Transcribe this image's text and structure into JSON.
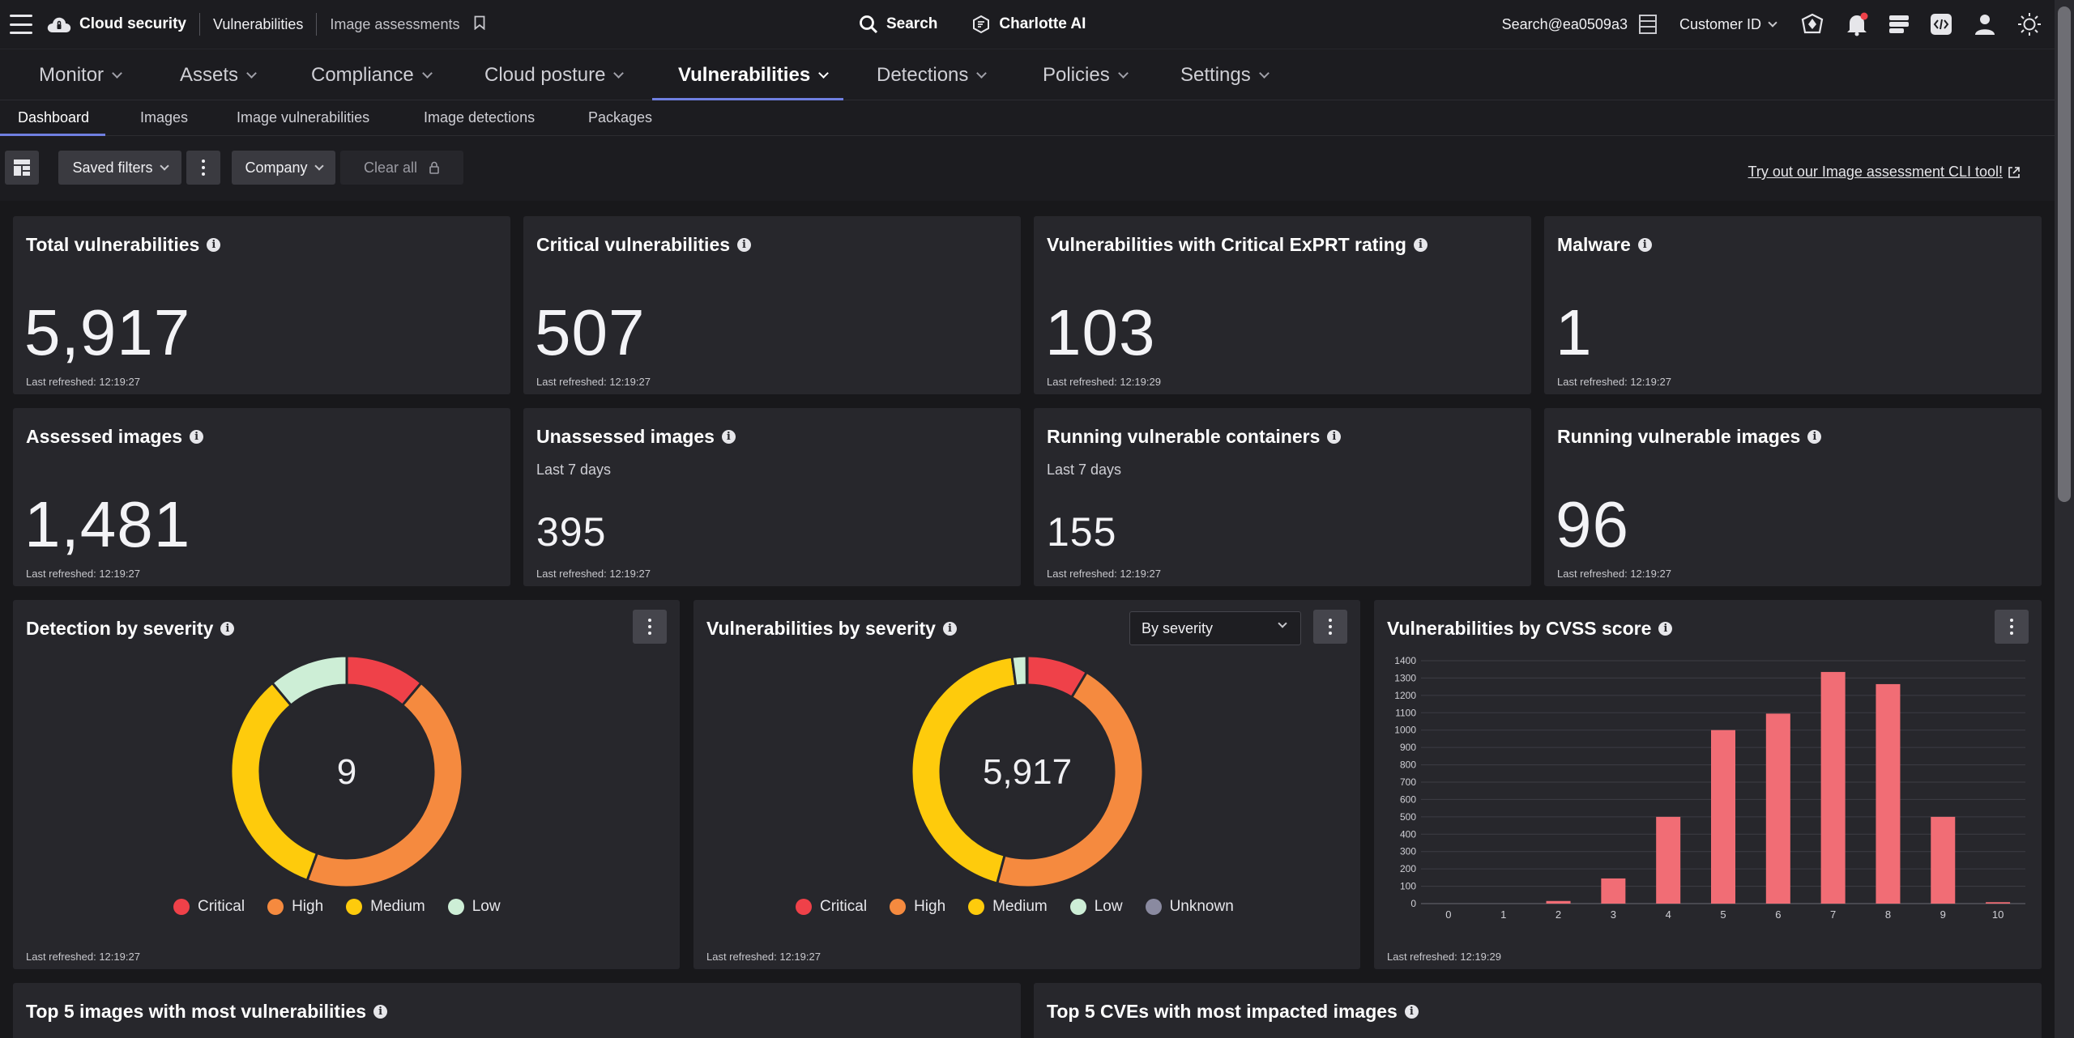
{
  "topbar": {
    "brand": "Cloud security",
    "crumb1": "Vulnerabilities",
    "crumb2": "Image assessments",
    "search_label": "Search",
    "ai_label": "Charlotte AI",
    "user": "Search@ea0509a3",
    "customer": "Customer ID"
  },
  "nav": {
    "monitor": "Monitor",
    "assets": "Assets",
    "compliance": "Compliance",
    "cloud_posture": "Cloud posture",
    "vulnerabilities": "Vulnerabilities",
    "detections": "Detections",
    "policies": "Policies",
    "settings": "Settings"
  },
  "subnav": {
    "dashboard": "Dashboard",
    "images": "Images",
    "image_vulns": "Image vulnerabilities",
    "image_detections": "Image detections",
    "packages": "Packages"
  },
  "filters": {
    "saved_filters": "Saved filters",
    "company": "Company",
    "clear_all": "Clear all",
    "cli_link": "Try out our Image assessment CLI tool!"
  },
  "cards": {
    "total": {
      "title": "Total vulnerabilities",
      "value": "5,917",
      "refreshed": "Last refreshed: 12:19:27"
    },
    "critical": {
      "title": "Critical vulnerabilities",
      "value": "507",
      "refreshed": "Last refreshed: 12:19:27"
    },
    "exprt": {
      "title": "Vulnerabilities with Critical ExPRT rating",
      "value": "103",
      "refreshed": "Last refreshed: 12:19:29"
    },
    "malware": {
      "title": "Malware",
      "value": "1",
      "refreshed": "Last refreshed: 12:19:27"
    },
    "assessed": {
      "title": "Assessed images",
      "value": "1,481",
      "refreshed": "Last refreshed: 12:19:27"
    },
    "unassessed": {
      "title": "Unassessed images",
      "sub": "Last 7 days",
      "value": "395",
      "refreshed": "Last refreshed: 12:19:27"
    },
    "containers": {
      "title": "Running vulnerable containers",
      "sub": "Last 7 days",
      "value": "155",
      "refreshed": "Last refreshed: 12:19:27"
    },
    "running_images": {
      "title": "Running vulnerable images",
      "value": "96",
      "refreshed": "Last refreshed: 12:19:27"
    }
  },
  "panels": {
    "detection": {
      "title": "Detection by severity",
      "center": "9",
      "refreshed": "Last refreshed: 12:19:27"
    },
    "vuln_sev": {
      "title": "Vulnerabilities by severity",
      "center": "5,917",
      "select": "By severity",
      "refreshed": "Last refreshed: 12:19:27"
    },
    "cvss": {
      "title": "Vulnerabilities by CVSS score",
      "refreshed": "Last refreshed: 12:19:29"
    },
    "top_images": {
      "title": "Top 5 images with most vulnerabilities"
    },
    "top_cves": {
      "title": "Top 5 CVEs with most impacted images"
    }
  },
  "legend": {
    "critical": "Critical",
    "high": "High",
    "medium": "Medium",
    "low": "Low",
    "unknown": "Unknown"
  },
  "colors": {
    "critical": "#ef4149",
    "high": "#f58a3f",
    "medium": "#fecb0c",
    "low": "#cdeed6",
    "unknown": "#8a8aa0",
    "bar": "#f16d75",
    "accent": "#6f7fe0"
  },
  "chart_data": [
    {
      "type": "pie",
      "title": "Detection by severity",
      "categories": [
        "Critical",
        "High",
        "Medium",
        "Low"
      ],
      "values": [
        1,
        4,
        3,
        1
      ],
      "center_label": "9"
    },
    {
      "type": "pie",
      "title": "Vulnerabilities by severity",
      "categories": [
        "Critical",
        "High",
        "Medium",
        "Low",
        "Unknown"
      ],
      "values": [
        507,
        2700,
        2585,
        120,
        5
      ],
      "center_label": "5,917"
    },
    {
      "type": "bar",
      "title": "Vulnerabilities by CVSS score",
      "categories": [
        "0",
        "1",
        "2",
        "3",
        "4",
        "5",
        "6",
        "7",
        "8",
        "9",
        "10"
      ],
      "values": [
        0,
        0,
        15,
        145,
        500,
        1000,
        1095,
        1335,
        1265,
        500,
        8
      ],
      "ylim": [
        0,
        1400
      ],
      "yticks": [
        0,
        100,
        200,
        300,
        400,
        500,
        600,
        700,
        800,
        900,
        1000,
        1100,
        1200,
        1300,
        1400
      ],
      "grid": true
    }
  ]
}
